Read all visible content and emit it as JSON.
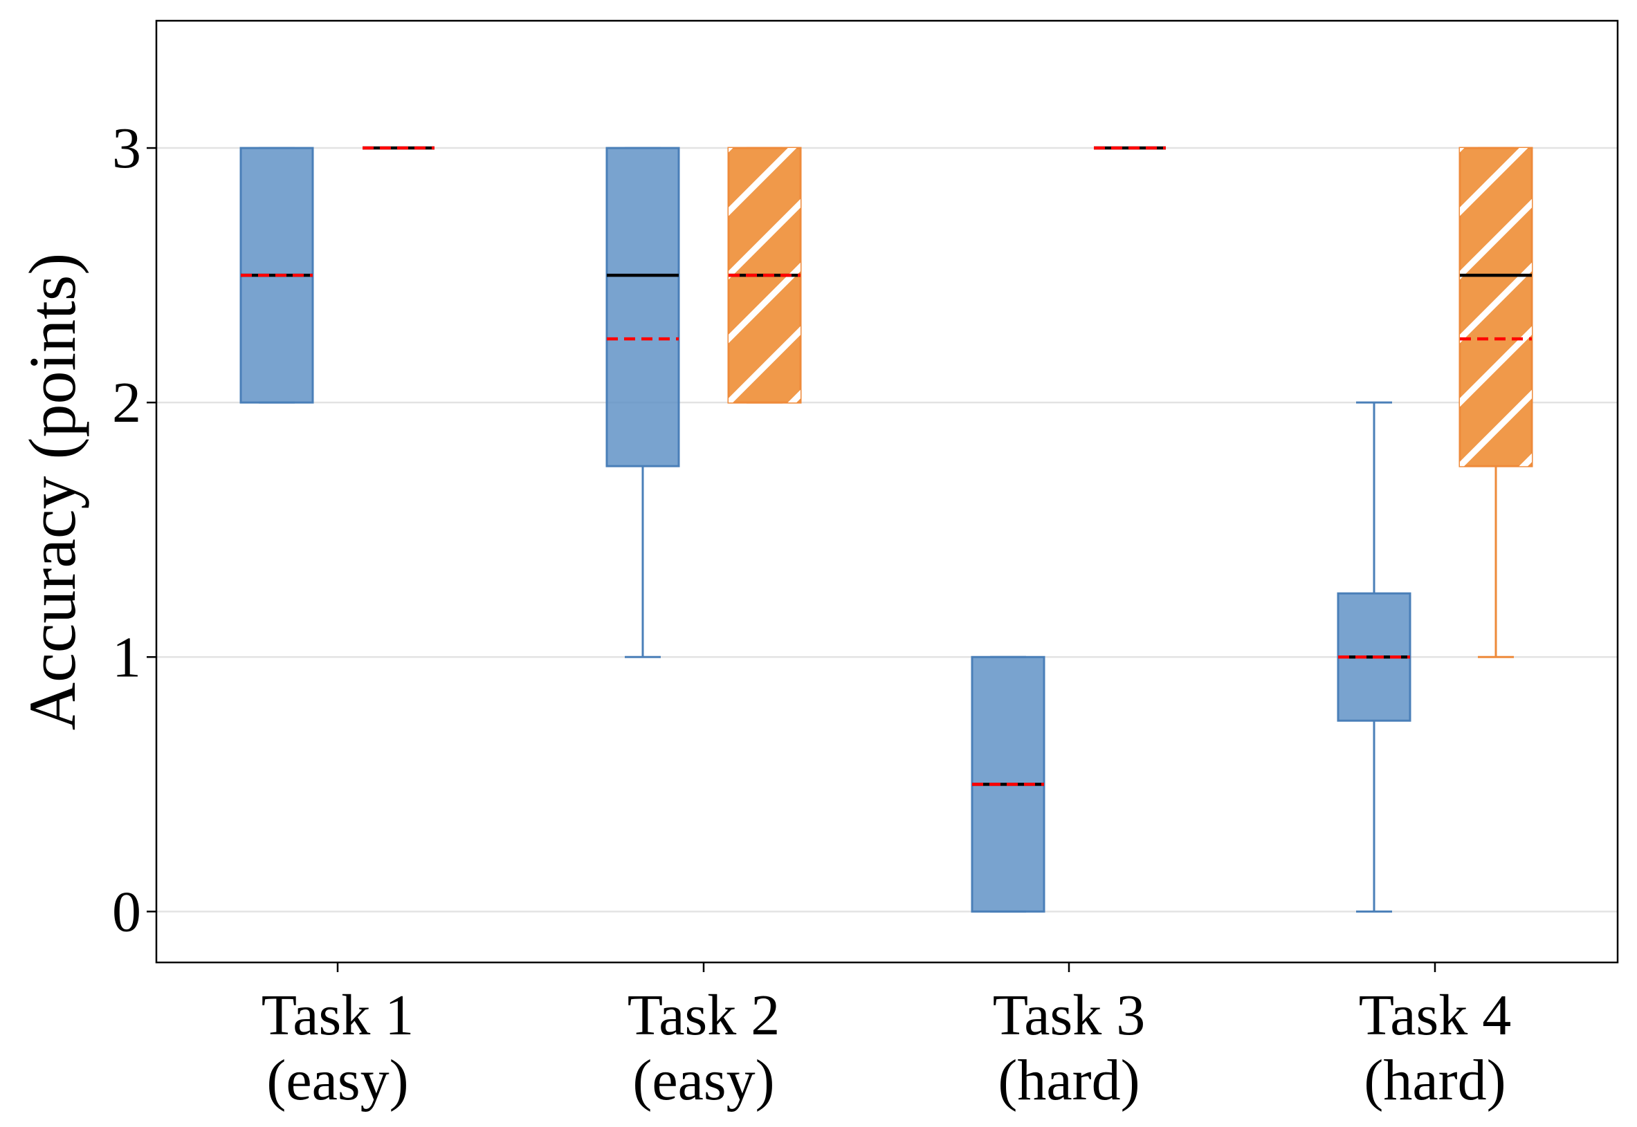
{
  "chart_data": {
    "type": "boxplot",
    "ylabel": "Accuracy (points)",
    "xlabel": "",
    "ylim": [
      -0.2,
      3.5
    ],
    "yticks": [
      0,
      1,
      2,
      3
    ],
    "grid": "horizontal",
    "legend": "none",
    "categories": [
      {
        "name": "Task 1",
        "difficulty": "(easy)"
      },
      {
        "name": "Task 2",
        "difficulty": "(easy)"
      },
      {
        "name": "Task 3",
        "difficulty": "(hard)"
      },
      {
        "name": "Task 4",
        "difficulty": "(hard)"
      }
    ],
    "series": [
      {
        "color": "#5b8fc4",
        "edge": "#4a7fb8",
        "hatch": false,
        "boxes": [
          {
            "whisker_low": 2,
            "q1": 2,
            "median": 2.5,
            "mean": 2.5,
            "q3": 3,
            "whisker_high": 3
          },
          {
            "whisker_low": 1,
            "q1": 1.75,
            "median": 2.5,
            "mean": 2.25,
            "q3": 3,
            "whisker_high": 3
          },
          {
            "whisker_low": 0,
            "q1": 0,
            "median": 0.5,
            "mean": 0.5,
            "q3": 1,
            "whisker_high": 1
          },
          {
            "whisker_low": 0,
            "q1": 0.75,
            "median": 1,
            "mean": 1,
            "q3": 1.25,
            "whisker_high": 2
          }
        ]
      },
      {
        "color": "#f0994a",
        "edge": "#ee8a3a",
        "hatch": true,
        "boxes": [
          {
            "whisker_low": 3,
            "q1": 3,
            "median": 3,
            "mean": 3,
            "q3": 3,
            "whisker_high": 3
          },
          {
            "whisker_low": 2,
            "q1": 2,
            "median": 2.5,
            "mean": 2.5,
            "q3": 3,
            "whisker_high": 3
          },
          {
            "whisker_low": 3,
            "q1": 3,
            "median": 3,
            "mean": 3,
            "q3": 3,
            "whisker_high": 3
          },
          {
            "whisker_low": 1,
            "q1": 1.75,
            "median": 2.5,
            "mean": 2.25,
            "q3": 3,
            "whisker_high": 3
          }
        ]
      }
    ],
    "median_line_color": "#000000",
    "mean_line_color": "#ff0000",
    "mean_line_style": "dashed"
  }
}
